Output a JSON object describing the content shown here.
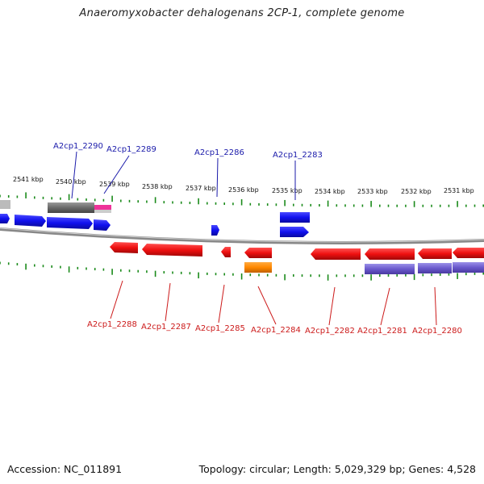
{
  "title": "Anaeromyxobacter dehalogenans 2CP-1, complete genome",
  "footer": {
    "accession": "Accession: NC_011891",
    "summary": "Topology: circular; Length: 5,029,329 bp; Genes: 4,528"
  },
  "colors": {
    "forward_cds": "#1010ee",
    "reverse_cds": "#ee1010",
    "gray_feature": "#777777",
    "pink_feature": "#ee3399",
    "orange_feature": "#ff8800",
    "purple_feature": "#6a5acd",
    "tick": "#1a8a1a",
    "backbone": "#888888",
    "forward_label": "#1a1aaa",
    "reverse_label": "#cc1a1a"
  },
  "kbp_ticks": [
    "2541 kbp",
    "2540 kbp",
    "2539 kbp",
    "2538 kbp",
    "2537 kbp",
    "2536 kbp",
    "2535 kbp",
    "2534 kbp",
    "2533 kbp",
    "2532 kbp",
    "2531 kbp"
  ],
  "forward_labels": [
    "A2cp1_2290",
    "A2cp1_2289",
    "A2cp1_2286",
    "A2cp1_2283"
  ],
  "reverse_labels": [
    "A2cp1_2288",
    "A2cp1_2287",
    "A2cp1_2285",
    "A2cp1_2284",
    "A2cp1_2282",
    "A2cp1_2281",
    "A2cp1_2280"
  ]
}
